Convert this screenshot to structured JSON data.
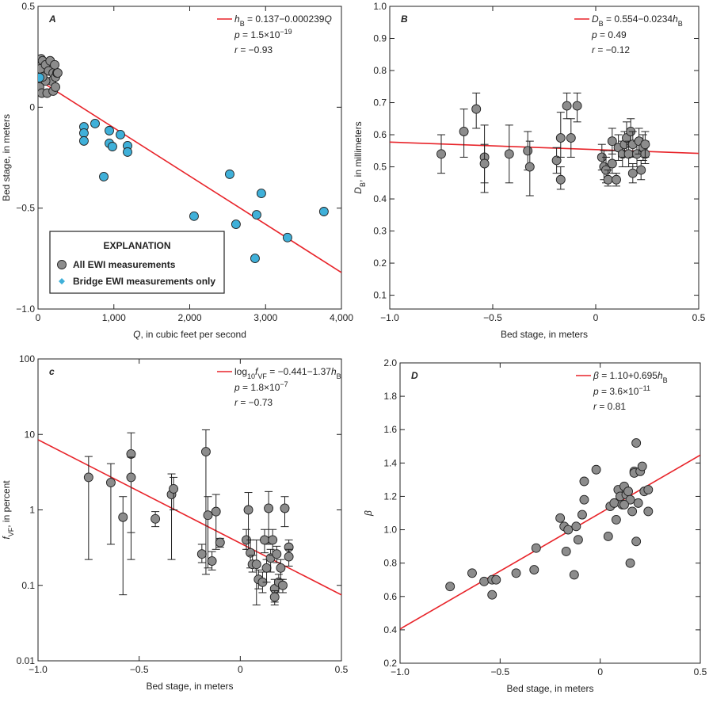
{
  "chart_data": [
    {
      "type": "scatter",
      "panel_label": "A",
      "xlabel": [
        {
          "text": "Q",
          "style": "italic"
        },
        {
          "text": ", in cubic feet per second"
        }
      ],
      "ylabel": [
        {
          "text": "Bed stage, in meters"
        }
      ],
      "xlim": [
        0,
        4000
      ],
      "ylim": [
        -1,
        0.5
      ],
      "xticks": [
        0,
        {
          "value": 1000,
          "label": "1,000"
        },
        {
          "value": 2000,
          "label": "2,000"
        },
        {
          "value": 3000,
          "label": "3,000"
        },
        {
          "value": 4000,
          "label": "4,000"
        }
      ],
      "yticks": [
        {
          "value": -1,
          "label": "−1.0"
        },
        {
          "value": -0.5,
          "label": "−0.5"
        },
        0,
        0.5
      ],
      "legend_title": "EXPLANATION",
      "series": [
        {
          "name": "All EWI measurements",
          "color": "#8c8c8c",
          "legend_marker": "circle",
          "x": [
            40,
            60,
            80,
            30,
            100,
            140,
            160,
            200,
            180,
            100,
            20,
            50,
            120,
            200,
            230,
            230,
            250,
            260,
            220,
            60
          ],
          "y": [
            0.24,
            0.23,
            0.2,
            0.19,
            0.21,
            0.18,
            0.23,
            0.17,
            0.13,
            0.13,
            0.1,
            0.07,
            0.07,
            0.08,
            0.1,
            0.15,
            0.17,
            0.17,
            0.21,
            0.15
          ]
        },
        {
          "name": "Bridge EWI measurements only",
          "color": "#3fb0d9",
          "legend_marker": "diamond",
          "x": [
            20,
            605,
            605,
            605,
            752,
            940,
            940,
            981,
            1086,
            1180,
            1180,
            867,
            2057,
            2527,
            2610,
            2882,
            2944,
            2861,
            3289,
            3769
          ],
          "y": [
            0.147,
            -0.097,
            -0.128,
            -0.167,
            -0.081,
            -0.116,
            -0.179,
            -0.195,
            -0.136,
            -0.191,
            -0.222,
            -0.344,
            -0.54,
            -0.332,
            -0.58,
            -0.533,
            -0.427,
            -0.749,
            -0.646,
            -0.517
          ]
        }
      ],
      "fit": {
        "color": "#e8242a",
        "x": [
          0,
          4000
        ],
        "y": [
          0.137,
          -0.819
        ],
        "label": [
          {
            "text": "h",
            "style": "italic"
          },
          {
            "text": "B",
            "style": "sub"
          },
          {
            "text": " = 0.137−0.000239"
          },
          {
            "text": "Q",
            "style": "italic"
          }
        ]
      },
      "stats": [
        [
          {
            "text": "p",
            "style": "italic"
          },
          {
            "text": " = 1.5×10"
          },
          {
            "text": "−19",
            "style": "sup"
          }
        ],
        [
          {
            "text": "r",
            "style": "italic"
          },
          {
            "text": " = −0.93"
          }
        ]
      ]
    },
    {
      "type": "scatter",
      "panel_label": "B",
      "xlabel": [
        {
          "text": "Bed stage, in meters"
        }
      ],
      "ylabel": [
        {
          "text": "D",
          "style": "italic"
        },
        {
          "text": "B",
          "style": "sub"
        },
        {
          "text": ", in millimeters"
        }
      ],
      "xlim": [
        -1,
        0.5
      ],
      "ylim": [
        0.057,
        1
      ],
      "xticks": [
        {
          "value": -1,
          "label": "−1.0"
        },
        {
          "value": -0.5,
          "label": "−0.5"
        },
        0,
        0.5
      ],
      "yticks": [
        0.1,
        0.2,
        0.3,
        0.4,
        0.5,
        0.6,
        0.7,
        0.8,
        0.9,
        {
          "value": 1,
          "label": "1.0"
        }
      ],
      "series": [
        {
          "color": "#8c8c8c",
          "x": [
            -0.75,
            -0.64,
            -0.58,
            -0.54,
            -0.54,
            -0.42,
            -0.33,
            -0.32,
            -0.19,
            -0.17,
            -0.17,
            -0.14,
            -0.12,
            -0.09,
            0.03,
            0.04,
            0.05,
            0.06,
            0.08,
            0.08,
            0.1,
            0.11,
            0.13,
            0.14,
            0.15,
            0.16,
            0.17,
            0.18,
            0.18,
            0.2,
            0.21,
            0.22,
            0.23,
            0.24,
            0.24
          ],
          "y": [
            0.54,
            0.61,
            0.68,
            0.53,
            0.51,
            0.54,
            0.55,
            0.5,
            0.52,
            0.59,
            0.46,
            0.69,
            0.59,
            0.69,
            0.53,
            0.5,
            0.49,
            0.46,
            0.58,
            0.51,
            0.46,
            0.56,
            0.54,
            0.57,
            0.59,
            0.54,
            0.61,
            0.57,
            0.48,
            0.54,
            0.58,
            0.49,
            0.56,
            0.54,
            0.57
          ],
          "ylow": [
            0.48,
            0.53,
            0.62,
            0.42,
            0.45,
            0.45,
            0.49,
            0.41,
            0.48,
            0.53,
            0.43,
            0.65,
            0.53,
            0.64,
            0.49,
            0.46,
            0.45,
            0.44,
            0.54,
            0.48,
            0.44,
            0.52,
            0.5,
            0.53,
            0.55,
            0.5,
            0.57,
            0.53,
            0.45,
            0.5,
            0.54,
            0.46,
            0.52,
            0.51,
            0.53
          ],
          "yhigh": [
            0.6,
            0.68,
            0.73,
            0.63,
            0.57,
            0.63,
            0.61,
            0.58,
            0.56,
            0.67,
            0.5,
            0.73,
            0.65,
            0.73,
            0.57,
            0.55,
            0.53,
            0.49,
            0.62,
            0.55,
            0.48,
            0.6,
            0.58,
            0.61,
            0.64,
            0.58,
            0.65,
            0.61,
            0.51,
            0.58,
            0.62,
            0.52,
            0.6,
            0.58,
            0.61
          ]
        }
      ],
      "fit": {
        "color": "#e8242a",
        "x": [
          -1,
          0.5
        ],
        "y": [
          0.577,
          0.542
        ],
        "label": [
          {
            "text": "D",
            "style": "italic"
          },
          {
            "text": "B",
            "style": "sub"
          },
          {
            "text": " = 0.554−0.0234"
          },
          {
            "text": "h",
            "style": "italic"
          },
          {
            "text": "B",
            "style": "sub"
          }
        ]
      },
      "stats": [
        [
          {
            "text": "p",
            "style": "italic"
          },
          {
            "text": " = 0.49"
          }
        ],
        [
          {
            "text": "r",
            "style": "italic"
          },
          {
            "text": " = −0.12"
          }
        ]
      ]
    },
    {
      "type": "scatter",
      "panel_label": "c",
      "ylog": true,
      "xlabel": [
        {
          "text": "Bed stage, in meters"
        }
      ],
      "ylabel": [
        {
          "text": "f",
          "style": "italic"
        },
        {
          "text": "VF",
          "style": "sub"
        },
        {
          "text": ", in percent"
        }
      ],
      "xlim": [
        -1,
        0.5
      ],
      "ylim": [
        0.01,
        100
      ],
      "xticks": [
        {
          "value": -1,
          "label": "−1.0"
        },
        {
          "value": -0.5,
          "label": "−0.5"
        },
        0,
        0.5
      ],
      "yticks": [
        0.01,
        0.1,
        1,
        10,
        100
      ],
      "series": [
        {
          "color": "#8c8c8c",
          "x": [
            -0.75,
            -0.64,
            -0.58,
            -0.54,
            -0.54,
            -0.42,
            -0.34,
            -0.33,
            -0.19,
            -0.17,
            -0.16,
            -0.14,
            -0.12,
            -0.1,
            0.03,
            0.04,
            0.05,
            0.06,
            0.08,
            0.09,
            0.11,
            0.12,
            0.13,
            0.14,
            0.15,
            0.16,
            0.17,
            0.17,
            0.18,
            0.19,
            0.2,
            0.21,
            0.22,
            0.24,
            0.24
          ],
          "y": [
            2.7,
            2.3,
            0.8,
            5.5,
            2.7,
            0.76,
            1.6,
            1.9,
            0.26,
            5.9,
            0.85,
            0.21,
            0.95,
            0.37,
            0.4,
            1,
            0.27,
            0.19,
            0.19,
            0.12,
            0.11,
            0.4,
            0.17,
            1.05,
            0.23,
            0.4,
            0.09,
            0.07,
            0.26,
            0.11,
            0.17,
            0.1,
            1.05,
            0.32,
            0.24
          ],
          "ylow": [
            0.22,
            0.35,
            0.075,
            0.22,
            0.5,
            0.6,
            0.22,
            1,
            0.2,
            0.14,
            0.17,
            0.16,
            0.3,
            0.32,
            0.3,
            0.3,
            0.17,
            0.15,
            0.055,
            0.09,
            0.08,
            0.27,
            0.11,
            0.35,
            0.15,
            0.25,
            0.06,
            0.055,
            0.2,
            0.08,
            0.12,
            0.08,
            0.6,
            0.25,
            0.18
          ],
          "yhigh": [
            5.1,
            4.1,
            1.5,
            10.5,
            5,
            0.95,
            3,
            2.7,
            0.35,
            11.5,
            1.5,
            0.28,
            1.6,
            0.42,
            0.55,
            1.7,
            0.4,
            0.25,
            0.4,
            0.16,
            0.15,
            0.55,
            0.22,
            1.75,
            0.3,
            0.55,
            0.12,
            0.085,
            0.33,
            0.14,
            0.22,
            0.12,
            1.5,
            0.4,
            0.3
          ]
        }
      ],
      "fit": {
        "color": "#e8242a",
        "x": [
          -1,
          0.5
        ],
        "y": [
          8.49,
          0.0748
        ],
        "label": [
          {
            "text": "log"
          },
          {
            "text": "10",
            "style": "sub"
          },
          {
            "text": "f",
            "style": "italic"
          },
          {
            "text": "VF",
            "style": "sub"
          },
          {
            "text": " = −0.441−1.37"
          },
          {
            "text": "h",
            "style": "italic"
          },
          {
            "text": "B",
            "style": "sub"
          }
        ]
      },
      "stats": [
        [
          {
            "text": "p",
            "style": "italic"
          },
          {
            "text": " = 1.8×10"
          },
          {
            "text": "−7",
            "style": "sup"
          }
        ],
        [
          {
            "text": "r",
            "style": "italic"
          },
          {
            "text": " = −0.73"
          }
        ]
      ]
    },
    {
      "type": "scatter",
      "panel_label": "D",
      "xlabel": [
        {
          "text": "Bed stage, in meters"
        }
      ],
      "ylabel": [
        {
          "text": "β",
          "style": "italic"
        }
      ],
      "xlim": [
        -1,
        0.5
      ],
      "ylim": [
        0.2,
        2
      ],
      "xticks": [
        {
          "value": -1,
          "label": "−1.0"
        },
        {
          "value": -0.5,
          "label": "−0.5"
        },
        0,
        0.5
      ],
      "yticks": [
        0.2,
        0.4,
        0.6,
        0.8,
        {
          "value": 1,
          "label": "1.0"
        },
        1.2,
        1.4,
        1.6,
        1.8,
        {
          "value": 2,
          "label": "2.0"
        }
      ],
      "series": [
        {
          "color": "#8c8c8c",
          "x": [
            -0.75,
            -0.64,
            -0.58,
            -0.54,
            -0.54,
            -0.52,
            -0.42,
            -0.33,
            -0.32,
            -0.2,
            -0.18,
            -0.17,
            -0.16,
            -0.13,
            -0.12,
            -0.11,
            -0.09,
            -0.08,
            -0.08,
            -0.02,
            0.04,
            0.05,
            0.07,
            0.08,
            0.09,
            0.1,
            0.11,
            0.12,
            0.13,
            0.14,
            0.15,
            0.16,
            0.17,
            0.17,
            0.18,
            0.18,
            0.19,
            0.2,
            0.21,
            0.22,
            0.24,
            0.24,
            0.15,
            0.12
          ],
          "y": [
            0.66,
            0.74,
            0.69,
            0.7,
            0.61,
            0.7,
            0.74,
            0.76,
            0.89,
            1.07,
            1.02,
            0.87,
            1,
            0.73,
            1.02,
            0.94,
            1.09,
            1.18,
            1.29,
            1.36,
            0.96,
            1.14,
            1.16,
            1.06,
            1.24,
            1.2,
            1.15,
            1.26,
            1.21,
            1.23,
            0.8,
            1.11,
            1.35,
            1.34,
            1.52,
            0.93,
            1.16,
            1.35,
            1.38,
            1.23,
            1.11,
            1.24,
            1.18,
            1.15
          ]
        }
      ],
      "fit": {
        "color": "#e8242a",
        "x": [
          -1,
          0.5
        ],
        "y": [
          0.405,
          1.4475
        ],
        "label": [
          {
            "text": "β",
            "style": "italic"
          },
          {
            "text": " = 1.10+0.695"
          },
          {
            "text": "h",
            "style": "italic"
          },
          {
            "text": "B",
            "style": "sub"
          }
        ]
      },
      "stats": [
        [
          {
            "text": "p",
            "style": "italic"
          },
          {
            "text": " = 3.6×10"
          },
          {
            "text": "−11",
            "style": "sup"
          }
        ],
        [
          {
            "text": "r",
            "style": "italic"
          },
          {
            "text": " = 0.81"
          }
        ]
      ]
    }
  ]
}
